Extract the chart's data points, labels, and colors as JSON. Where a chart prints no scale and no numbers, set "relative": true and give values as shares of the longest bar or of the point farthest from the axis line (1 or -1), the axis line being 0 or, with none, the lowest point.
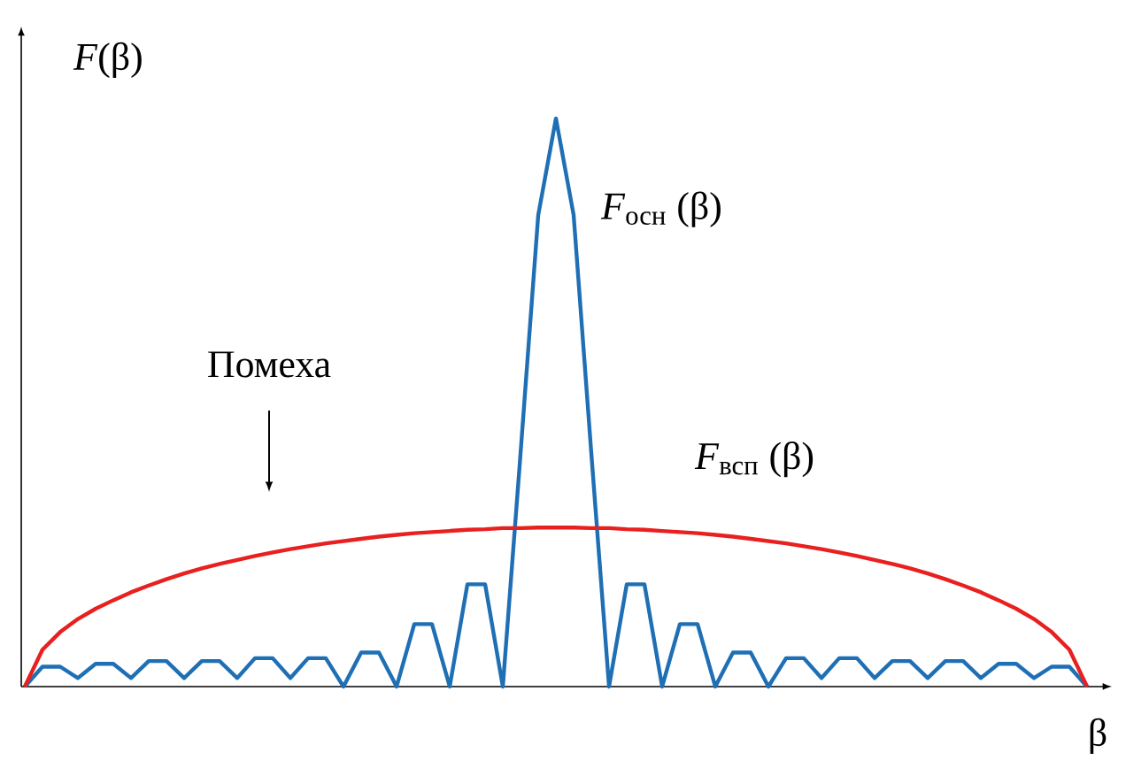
{
  "chart_data": {
    "type": "line",
    "relative": true,
    "xlabel": "β",
    "ylabel": "*F*(β)",
    "annotations": [
      "Помеха"
    ],
    "categories": [
      null,
      null,
      null,
      null,
      null,
      null,
      null,
      null,
      null,
      null,
      null,
      null,
      null,
      null,
      null,
      null,
      null,
      null,
      null,
      null,
      null,
      null,
      null,
      null,
      null,
      null,
      null,
      null,
      null,
      null,
      null,
      null,
      null,
      null,
      null,
      null,
      null,
      null,
      null,
      null,
      null,
      null,
      null,
      null,
      null,
      null,
      null,
      null,
      null,
      null,
      null,
      null,
      null,
      null,
      null,
      null,
      null,
      null,
      null,
      null,
      null
    ],
    "series": [
      {
        "name": "*F*$_{осн}$ (β)",
        "color": "#1f6fb5",
        "values": [
          0,
          0.035,
          0.035,
          0.015,
          0.04,
          0.04,
          0.015,
          0.045,
          0.045,
          0.015,
          0.045,
          0.045,
          0.015,
          0.05,
          0.05,
          0.015,
          0.05,
          0.05,
          0,
          0.06,
          0.06,
          0,
          0.11,
          0.11,
          0,
          0.18,
          0.18,
          0,
          0.41,
          0.83,
          1.0,
          0.83,
          0.41,
          0,
          0.18,
          0.18,
          0,
          0.11,
          0.11,
          0,
          0.06,
          0.06,
          0,
          0.05,
          0.05,
          0.015,
          0.05,
          0.05,
          0.015,
          0.045,
          0.045,
          0.015,
          0.045,
          0.045,
          0.015,
          0.04,
          0.04,
          0.015,
          0.035,
          0.035,
          0
        ]
      },
      {
        "name": "*F*$_{всп}$ (β)",
        "color": "#e8201f",
        "values": [
          0,
          0.065,
          0.096,
          0.119,
          0.137,
          0.152,
          0.166,
          0.178,
          0.189,
          0.199,
          0.208,
          0.216,
          0.223,
          0.23,
          0.236,
          0.242,
          0.247,
          0.252,
          0.256,
          0.26,
          0.264,
          0.267,
          0.27,
          0.272,
          0.274,
          0.276,
          0.277,
          0.279,
          0.279,
          0.28,
          0.28,
          0.28,
          0.279,
          0.279,
          0.277,
          0.276,
          0.274,
          0.272,
          0.27,
          0.267,
          0.264,
          0.26,
          0.256,
          0.252,
          0.247,
          0.242,
          0.236,
          0.23,
          0.223,
          0.216,
          0.208,
          0.199,
          0.189,
          0.178,
          0.166,
          0.152,
          0.137,
          0.119,
          0.096,
          0.065,
          0
        ]
      }
    ]
  }
}
